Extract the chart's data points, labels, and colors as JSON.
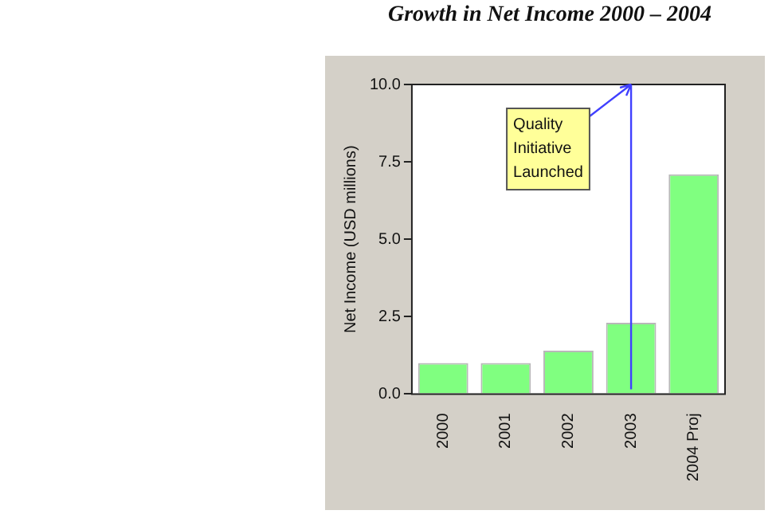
{
  "chart_data": {
    "type": "bar",
    "title": "Growth in Net Income 2000 – 2004",
    "ylabel": "Net Income (USD millions)",
    "categories": [
      "2000",
      "2001",
      "2002",
      "2003",
      "2004 Proj"
    ],
    "values": [
      1.0,
      1.0,
      1.4,
      2.3,
      7.1
    ],
    "color": "#80ff80",
    "ylim": [
      0,
      10
    ],
    "yticks": [
      {
        "value": 0,
        "label": "0.0"
      },
      {
        "value": 2.5,
        "label": "2.5"
      },
      {
        "value": 5,
        "label": "5.0"
      },
      {
        "value": 7.5,
        "label": "7.5"
      },
      {
        "value": 10,
        "label": "10.0"
      }
    ],
    "grid": false,
    "ref_lines": [
      {
        "axis": "x",
        "value": "2003",
        "label": "Quality Initiative Launched",
        "color": "#4040ff"
      }
    ]
  }
}
